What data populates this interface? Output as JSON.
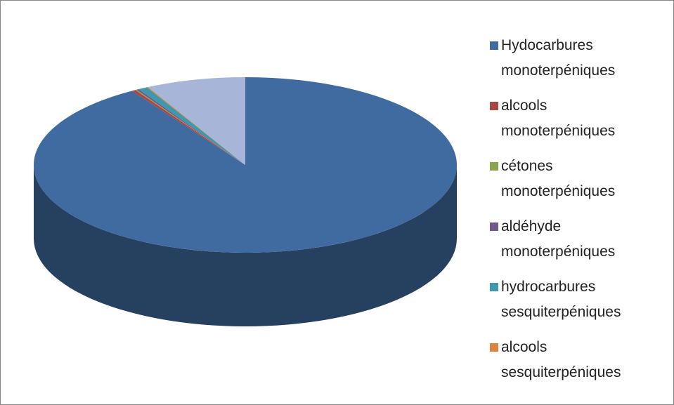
{
  "chart_data": {
    "type": "pie3d",
    "categories": [
      "Hydocarbures monoterpéniques",
      "alcools monoterpéniques",
      "cétones monoterpéniques",
      "aldéhyde monoterpéniques",
      "hydrocarbures sesquiterpéniques",
      "alcools sesquiterpéniques",
      null
    ],
    "values": [
      91,
      0.3,
      0.1,
      0.2,
      0.7,
      0.1,
      7.6
    ],
    "colors": [
      "#3f6ba0",
      "#aa4643",
      "#89a54e",
      "#71588f",
      "#3f98ae",
      "#db843d",
      "#a6b5d8"
    ],
    "legend": "right"
  }
}
